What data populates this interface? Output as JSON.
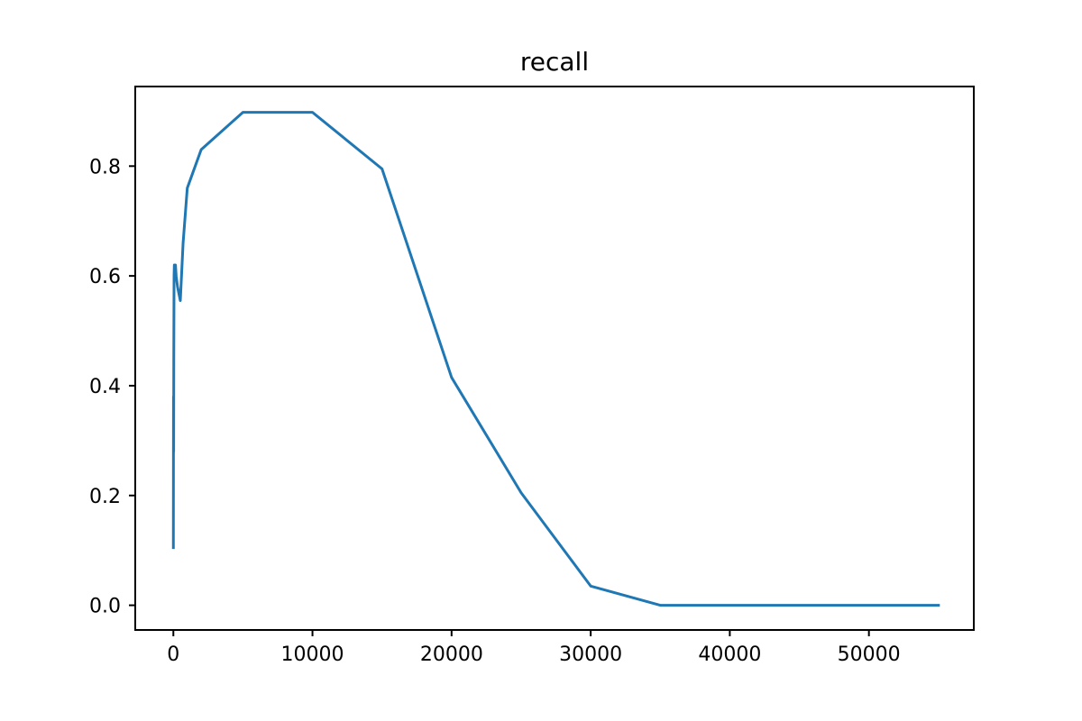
{
  "chart_data": {
    "type": "line",
    "title": "recall",
    "xlabel": "",
    "ylabel": "",
    "xlim": [
      -2740,
      57540
    ],
    "ylim": [
      -0.045,
      0.945
    ],
    "xticks": [
      0,
      10000,
      20000,
      30000,
      40000,
      50000
    ],
    "xtick_labels": [
      "0",
      "10000",
      "20000",
      "30000",
      "40000",
      "50000"
    ],
    "yticks": [
      0.0,
      0.2,
      0.4,
      0.6,
      0.8
    ],
    "ytick_labels": [
      "0.0",
      "0.2",
      "0.4",
      "0.6",
      "0.8"
    ],
    "grid": false,
    "legend": "none",
    "series": [
      {
        "color": "#1f77b4",
        "x": [
          0,
          10,
          20,
          30,
          50,
          70,
          100,
          150,
          200,
          300,
          500,
          700,
          1000,
          2000,
          5000,
          10000,
          15000,
          20000,
          25000,
          30000,
          35000,
          40000,
          45000,
          50000,
          55000
        ],
        "y": [
          0.105,
          0.38,
          0.28,
          0.45,
          0.6,
          0.62,
          0.6,
          0.62,
          0.6,
          0.58,
          0.555,
          0.66,
          0.76,
          0.83,
          0.898,
          0.898,
          0.795,
          0.415,
          0.205,
          0.035,
          0.0,
          0.0,
          0.0,
          0.0,
          0.0
        ]
      }
    ]
  }
}
